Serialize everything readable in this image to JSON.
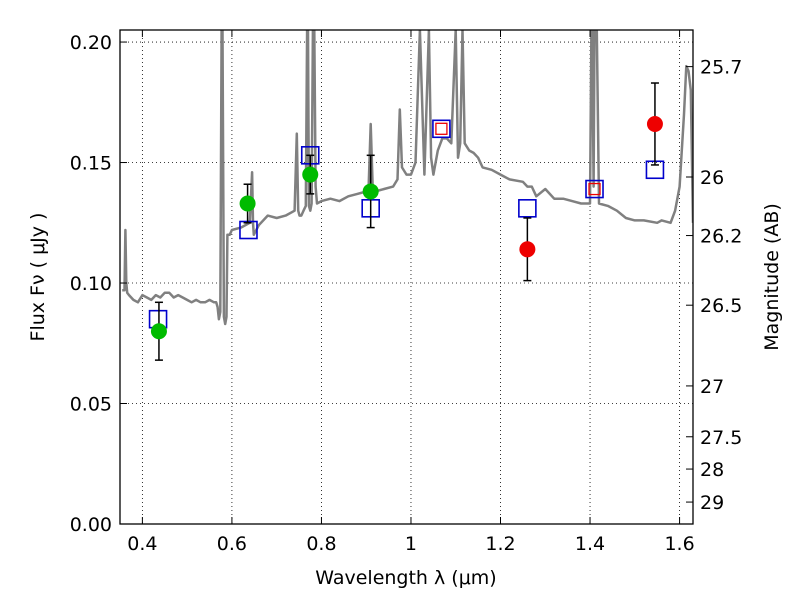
{
  "chart_data": {
    "type": "scatter",
    "title": "",
    "xlabel": "Wavelength  λ (μm)",
    "ylabel": "Flux  Fν  ( μJy )",
    "ylabel_right": "Magnitude (AB)",
    "xlim": [
      0.35,
      1.63
    ],
    "ylim": [
      0.0,
      0.205
    ],
    "grid": true,
    "x_ticks": [
      0.4,
      0.6,
      0.8,
      1.0,
      1.2,
      1.4,
      1.6
    ],
    "x_tick_labels": [
      "0.4",
      "0.6",
      "0.8",
      "1",
      "1.2",
      "1.4",
      "1.6"
    ],
    "y_ticks": [
      0.0,
      0.05,
      0.1,
      0.15,
      0.2
    ],
    "y_tick_labels": [
      "0.00",
      "0.05",
      "0.10",
      "0.15",
      "0.20"
    ],
    "right_ticks": [
      {
        "label": "25.7",
        "flux": 0.1898
      },
      {
        "label": "26",
        "flux": 0.144
      },
      {
        "label": "26.2",
        "flux": 0.1197
      },
      {
        "label": "26.5",
        "flux": 0.0908
      },
      {
        "label": "27",
        "flux": 0.0573
      },
      {
        "label": "27.5",
        "flux": 0.0362
      },
      {
        "label": "28",
        "flux": 0.0228
      },
      {
        "label": "29",
        "flux": 0.0091
      }
    ],
    "colors": {
      "spectrum": "#808080",
      "model": "#0000cc",
      "green": "#00bb00",
      "red": "#ee0000",
      "errorbar": "#000000"
    },
    "series": [
      {
        "marker": "line",
        "x": [
          0.355,
          0.36,
          0.362,
          0.364,
          0.366,
          0.37,
          0.38,
          0.39,
          0.4,
          0.41,
          0.42,
          0.43,
          0.44,
          0.45,
          0.46,
          0.47,
          0.48,
          0.49,
          0.5,
          0.51,
          0.52,
          0.53,
          0.54,
          0.55,
          0.56,
          0.565,
          0.568,
          0.571,
          0.574,
          0.577,
          0.579,
          0.582,
          0.585,
          0.588,
          0.59,
          0.595,
          0.6,
          0.62,
          0.64,
          0.645,
          0.647,
          0.649,
          0.66,
          0.68,
          0.7,
          0.72,
          0.74,
          0.745,
          0.748,
          0.751,
          0.755,
          0.76,
          0.765,
          0.768,
          0.77,
          0.772,
          0.775,
          0.778,
          0.781,
          0.784,
          0.787,
          0.79,
          0.8,
          0.82,
          0.84,
          0.86,
          0.88,
          0.9,
          0.905,
          0.91,
          0.915,
          0.92,
          0.94,
          0.96,
          0.97,
          0.975,
          0.98,
          0.99,
          1.0,
          1.01,
          1.02,
          1.03,
          1.04,
          1.045,
          1.05,
          1.06,
          1.07,
          1.08,
          1.09,
          1.1,
          1.105,
          1.11,
          1.115,
          1.12,
          1.13,
          1.14,
          1.15,
          1.16,
          1.18,
          1.2,
          1.22,
          1.25,
          1.26,
          1.27,
          1.28,
          1.3,
          1.32,
          1.34,
          1.36,
          1.38,
          1.4,
          1.403,
          1.405,
          1.408,
          1.41,
          1.415,
          1.42,
          1.44,
          1.46,
          1.48,
          1.5,
          1.52,
          1.55,
          1.56,
          1.58,
          1.59,
          1.6,
          1.61,
          1.615,
          1.62,
          1.625,
          1.63
        ],
        "y": [
          0.097,
          0.097,
          0.122,
          0.1,
          0.096,
          0.095,
          0.093,
          0.092,
          0.095,
          0.094,
          0.093,
          0.095,
          0.094,
          0.096,
          0.096,
          0.094,
          0.095,
          0.094,
          0.093,
          0.092,
          0.093,
          0.092,
          0.092,
          0.093,
          0.092,
          0.092,
          0.09,
          0.085,
          0.088,
          0.205,
          0.205,
          0.086,
          0.083,
          0.086,
          0.12,
          0.12,
          0.122,
          0.123,
          0.125,
          0.146,
          0.125,
          0.12,
          0.124,
          0.128,
          0.127,
          0.128,
          0.13,
          0.162,
          0.13,
          0.128,
          0.128,
          0.13,
          0.132,
          0.205,
          0.205,
          0.132,
          0.13,
          0.133,
          0.205,
          0.205,
          0.14,
          0.133,
          0.134,
          0.135,
          0.134,
          0.136,
          0.137,
          0.138,
          0.137,
          0.166,
          0.137,
          0.138,
          0.139,
          0.14,
          0.143,
          0.172,
          0.148,
          0.145,
          0.145,
          0.15,
          0.205,
          0.145,
          0.205,
          0.152,
          0.145,
          0.155,
          0.16,
          0.16,
          0.158,
          0.205,
          0.152,
          0.158,
          0.205,
          0.158,
          0.155,
          0.154,
          0.152,
          0.148,
          0.147,
          0.145,
          0.143,
          0.142,
          0.14,
          0.14,
          0.136,
          0.139,
          0.135,
          0.135,
          0.134,
          0.133,
          0.133,
          0.205,
          0.205,
          0.14,
          0.205,
          0.205,
          0.133,
          0.132,
          0.13,
          0.127,
          0.126,
          0.126,
          0.125,
          0.126,
          0.125,
          0.13,
          0.14,
          0.17,
          0.19,
          0.188,
          0.18,
          0.125
        ]
      },
      {
        "marker": "open-square",
        "x": [
          0.435,
          0.637,
          0.775,
          0.91,
          1.068,
          1.26,
          1.41,
          1.545
        ],
        "y": [
          0.085,
          0.122,
          0.153,
          0.131,
          0.164,
          0.131,
          0.139,
          0.147
        ]
      },
      {
        "marker": "filled-circle",
        "x": [
          0.437,
          0.635,
          0.775,
          0.91
        ],
        "y": [
          0.08,
          0.133,
          0.145,
          0.138
        ],
        "err": [
          0.012,
          0.008,
          0.008,
          0.015
        ]
      },
      {
        "marker": "filled-circle",
        "x": [
          1.26,
          1.545
        ],
        "y": [
          0.114,
          0.166
        ],
        "err": [
          0.013,
          0.017
        ]
      },
      {
        "marker": "small-open-square",
        "x": [
          1.068,
          1.41
        ],
        "y": [
          0.164,
          0.139
        ]
      }
    ]
  }
}
